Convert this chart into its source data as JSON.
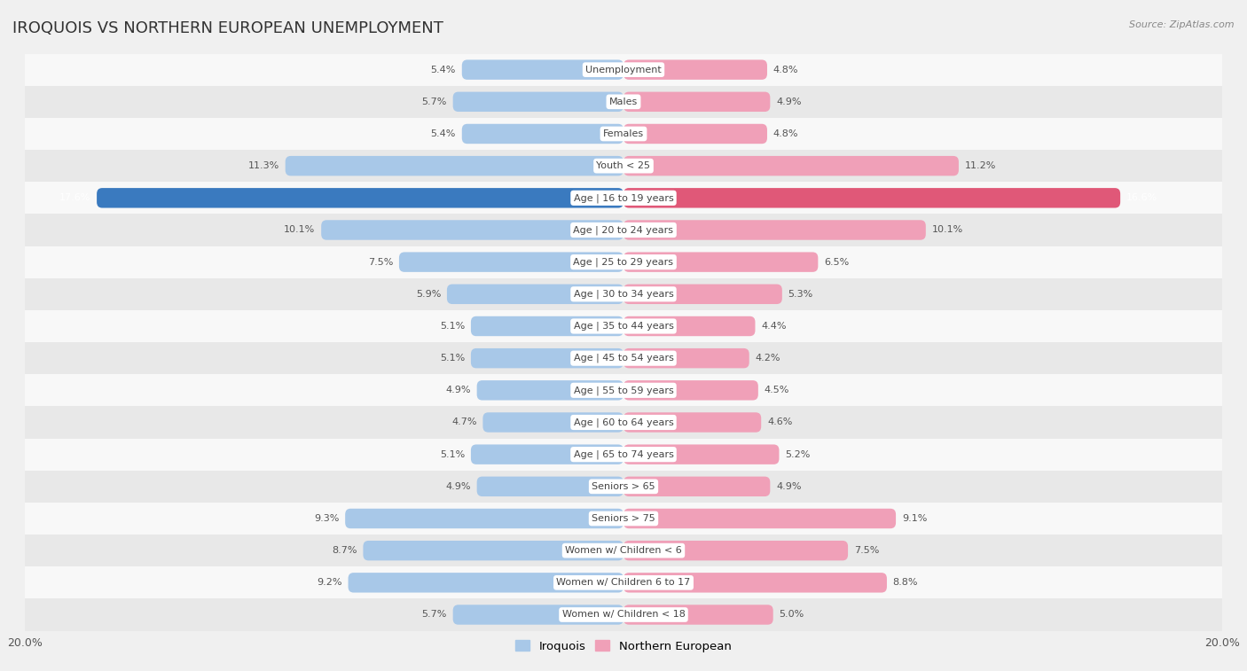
{
  "title": "IROQUOIS VS NORTHERN EUROPEAN UNEMPLOYMENT",
  "source": "Source: ZipAtlas.com",
  "categories": [
    "Unemployment",
    "Males",
    "Females",
    "Youth < 25",
    "Age | 16 to 19 years",
    "Age | 20 to 24 years",
    "Age | 25 to 29 years",
    "Age | 30 to 34 years",
    "Age | 35 to 44 years",
    "Age | 45 to 54 years",
    "Age | 55 to 59 years",
    "Age | 60 to 64 years",
    "Age | 65 to 74 years",
    "Seniors > 65",
    "Seniors > 75",
    "Women w/ Children < 6",
    "Women w/ Children 6 to 17",
    "Women w/ Children < 18"
  ],
  "iroquois": [
    5.4,
    5.7,
    5.4,
    11.3,
    17.6,
    10.1,
    7.5,
    5.9,
    5.1,
    5.1,
    4.9,
    4.7,
    5.1,
    4.9,
    9.3,
    8.7,
    9.2,
    5.7
  ],
  "northern_european": [
    4.8,
    4.9,
    4.8,
    11.2,
    16.6,
    10.1,
    6.5,
    5.3,
    4.4,
    4.2,
    4.5,
    4.6,
    5.2,
    4.9,
    9.1,
    7.5,
    8.8,
    5.0
  ],
  "iroquois_color": "#a8c8e8",
  "northern_european_color": "#f0a0b8",
  "iroquois_highlight_color": "#3a7abf",
  "northern_european_highlight_color": "#e05878",
  "background_color": "#f0f0f0",
  "row_color_even": "#f8f8f8",
  "row_color_odd": "#e8e8e8",
  "bar_height": 0.62,
  "xlim": 20.0
}
